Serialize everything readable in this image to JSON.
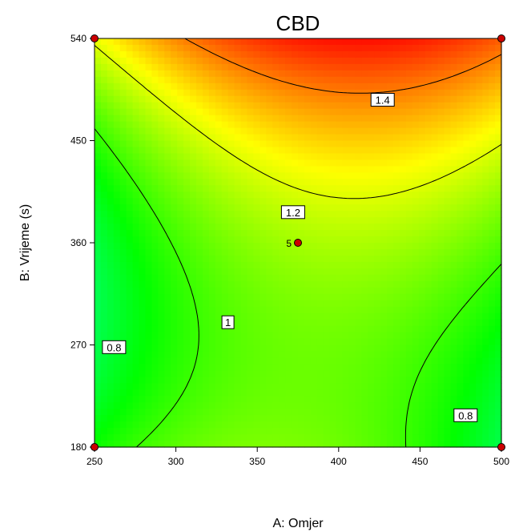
{
  "chart_data": {
    "type": "heatmap",
    "title": "CBD",
    "xlabel": "A: Omjer",
    "ylabel": "B: Vrijeme (s)",
    "xlim": [
      250,
      500
    ],
    "ylim": [
      180,
      540
    ],
    "x_ticks": [
      "250",
      "300",
      "350",
      "400",
      "450",
      "500"
    ],
    "y_ticks": [
      "180",
      "270",
      "360",
      "450",
      "540"
    ],
    "colormap": [
      "#00ffff",
      "#00ff00",
      "#ffff00",
      "#ff0000"
    ],
    "contour_levels": [
      0.8,
      1.0,
      1.2,
      1.4
    ],
    "contour_labels": [
      {
        "text": "1.4",
        "x": 427,
        "y": 486
      },
      {
        "text": "1.2",
        "x": 372,
        "y": 387
      },
      {
        "text": "1",
        "x": 332,
        "y": 290
      },
      {
        "text": "0.8",
        "x": 262,
        "y": 268
      },
      {
        "text": "0.8",
        "x": 478,
        "y": 208
      }
    ],
    "design_points": [
      {
        "x": 250,
        "y": 180
      },
      {
        "x": 500,
        "y": 180
      },
      {
        "x": 250,
        "y": 540
      },
      {
        "x": 500,
        "y": 540
      },
      {
        "x": 375,
        "y": 360,
        "label": "5"
      }
    ]
  }
}
